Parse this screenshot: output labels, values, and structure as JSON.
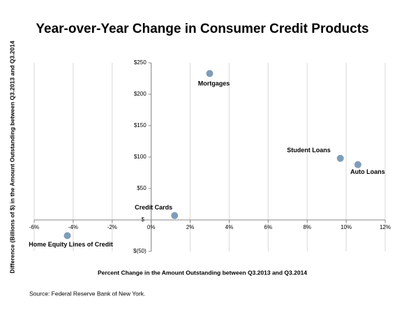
{
  "chart_data": {
    "type": "scatter",
    "title": "Year-over-Year Change in Consumer Credit Products",
    "x_label": "Percent Change in the Amount Outstanding between Q3.2013  and Q3.2014",
    "y_label": "Difference (Billions of $) in the Amount Outstanding between Q3.2013  and Q3.2014",
    "source": "Source: Federal Reserve Bank of New York.",
    "series": [
      {
        "name": null,
        "color": "#7f9db9",
        "x": [
          3.0,
          9.7,
          10.6,
          1.2,
          -4.3
        ],
        "values": [
          233,
          98,
          88,
          7,
          -25
        ],
        "labels": [
          "Mortgages",
          "Student Loans",
          "Auto Loans",
          "Credit Cards",
          "Home Equity Lines of Credit"
        ]
      }
    ],
    "xlim": [
      -6,
      12
    ],
    "xticks": [
      {
        "value": -6,
        "label": "-6%"
      },
      {
        "value": -4,
        "label": "-4%"
      },
      {
        "value": -2,
        "label": "-2%"
      },
      {
        "value": 0,
        "label": "0%"
      },
      {
        "value": 2,
        "label": "2%"
      },
      {
        "value": 4,
        "label": "4%"
      },
      {
        "value": 6,
        "label": "6%"
      },
      {
        "value": 8,
        "label": "8%"
      },
      {
        "value": 10,
        "label": "10%"
      },
      {
        "value": 12,
        "label": "12%"
      }
    ],
    "ylim": [
      -50,
      250
    ],
    "yticks": [
      {
        "value": -50,
        "label": "$(50)"
      },
      {
        "value": 0,
        "label": "$-"
      },
      {
        "value": 50,
        "label": "$50"
      },
      {
        "value": 100,
        "label": "$100"
      },
      {
        "value": 150,
        "label": "$150"
      },
      {
        "value": 200,
        "label": "$200"
      },
      {
        "value": 250,
        "label": "$250"
      }
    ],
    "grid": true
  }
}
